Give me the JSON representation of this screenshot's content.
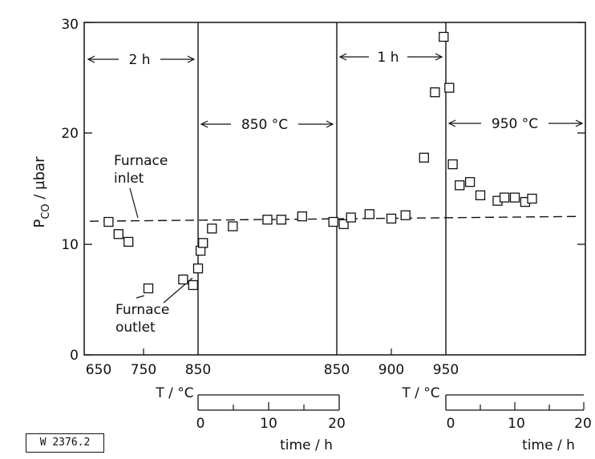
{
  "chart_data": {
    "type": "scatter",
    "title": "",
    "ylabel_main": "P",
    "ylabel_sub": "CO",
    "ylabel_unit": " / µbar",
    "ylim": [
      0,
      30
    ],
    "yticks": [
      "0",
      "10",
      "20",
      "30"
    ],
    "temp_axis": {
      "label": "T / °C",
      "ticks_left": [
        "650",
        "750",
        "850"
      ],
      "ticks_right": [
        "850",
        "900",
        "950"
      ]
    },
    "time_axes": [
      {
        "label": "time / h",
        "ticks": [
          "0",
          "10",
          "20"
        ]
      },
      {
        "label": "time / h",
        "ticks": [
          "0",
          "10",
          "20"
        ]
      }
    ],
    "annotations": {
      "period_2h": "2 h",
      "period_850": "850 °C",
      "period_1h": "1 h",
      "period_950": "950 °C",
      "inlet_1": "Furnace",
      "inlet_2": "inlet",
      "outlet_1": "Furnace",
      "outlet_2": "outlet"
    },
    "inlet_level": 12.2,
    "series": [
      {
        "segment": "heating 650-850 °C",
        "x_T": [
          670,
          690,
          710,
          750,
          820,
          840,
          850,
          855,
          860
        ],
        "y": [
          12.0,
          10.9,
          10.2,
          6.0,
          6.8,
          6.3,
          7.8,
          9.4,
          10.1
        ]
      },
      {
        "segment": "isothermal 850 °C",
        "x_time_h": [
          2,
          5,
          10,
          12,
          15,
          19.5,
          21
        ],
        "y": [
          11.4,
          11.6,
          12.2,
          12.2,
          12.5,
          12.0,
          11.8
        ]
      },
      {
        "segment": "heating 850-950 °C",
        "x_T": [
          863,
          880,
          900,
          913,
          930,
          940,
          948
        ],
        "y": [
          12.4,
          12.7,
          12.3,
          12.6,
          17.8,
          23.7,
          28.7
        ]
      },
      {
        "segment": "isothermal 950 °C",
        "x_time_h": [
          0.5,
          1,
          2,
          3.5,
          5,
          7.5,
          8.5,
          10,
          11.5,
          12.5
        ],
        "y": [
          24.1,
          17.2,
          15.3,
          15.6,
          14.4,
          13.9,
          14.2,
          14.2,
          13.8,
          14.1
        ]
      }
    ],
    "label_box": "W 2376.2"
  }
}
